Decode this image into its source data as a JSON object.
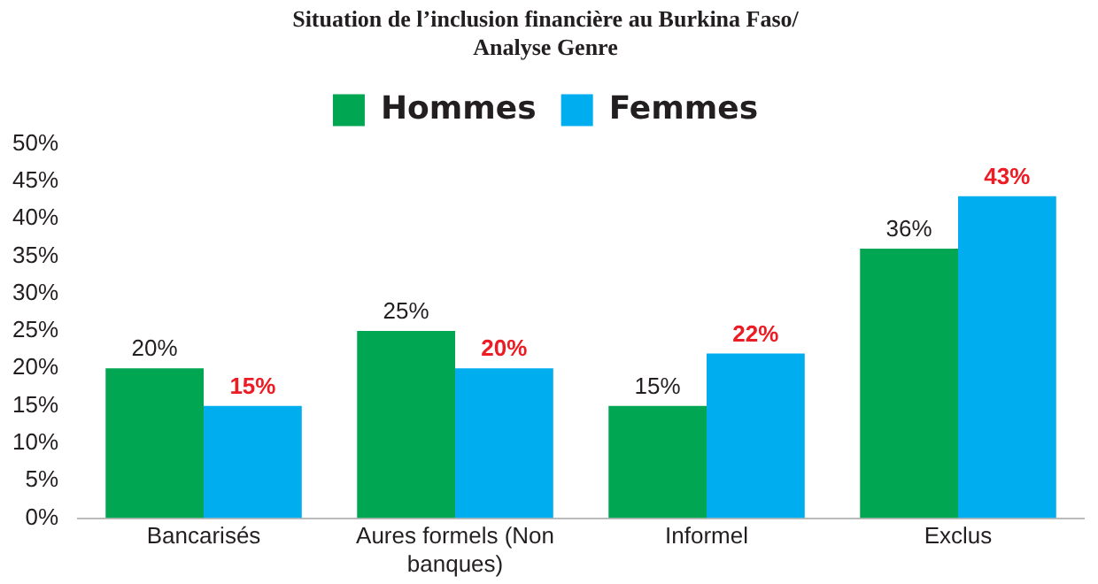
{
  "chart_data": {
    "type": "bar",
    "title": [
      "Situation de l’inclusion financière au Burkina Faso/",
      "Analyse Genre"
    ],
    "categories": [
      "Bancarisés",
      "Aures formels (Non banques)",
      "Informel",
      "Exclus"
    ],
    "series": [
      {
        "name": "Hommes",
        "color": "#00a651",
        "values": [
          20,
          25,
          15,
          36
        ],
        "value_labels": [
          "20%",
          "25%",
          "15%",
          "36%"
        ]
      },
      {
        "name": "Femmes",
        "color": "#00aeef",
        "values": [
          15,
          20,
          22,
          43
        ],
        "value_labels": [
          "15%",
          "20%",
          "22%",
          "43%"
        ]
      }
    ],
    "ylim": [
      0,
      50
    ],
    "yticks": [
      {
        "value": 0,
        "label": "0%"
      },
      {
        "value": 5,
        "label": "5%"
      },
      {
        "value": 10,
        "label": "10%"
      },
      {
        "value": 15,
        "label": "15%"
      },
      {
        "value": 20,
        "label": "20%"
      },
      {
        "value": 25,
        "label": "25%"
      },
      {
        "value": 30,
        "label": "30%"
      },
      {
        "value": 35,
        "label": "35%"
      },
      {
        "value": 40,
        "label": "40%"
      },
      {
        "value": 45,
        "label": "45%"
      },
      {
        "value": 50,
        "label": "50%"
      }
    ],
    "grid": false,
    "legend": "top"
  }
}
